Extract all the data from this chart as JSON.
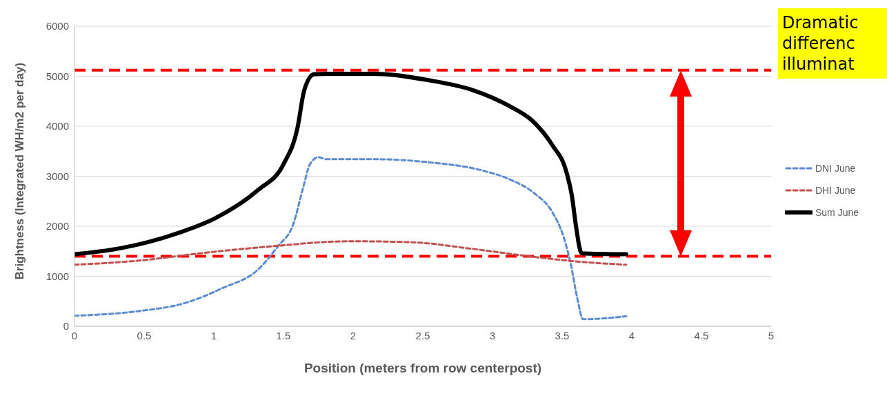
{
  "chart_data": {
    "type": "line",
    "xlabel": "Position (meters from row centerpost)",
    "ylabel": "Brightness (Integrated WH/m2 per day)",
    "xlim": [
      0,
      5
    ],
    "xticks": [
      0,
      0.5,
      1,
      1.5,
      2,
      2.5,
      3,
      3.5,
      4,
      4.5,
      5
    ],
    "ylim": [
      0,
      6000
    ],
    "yticks": [
      0,
      1000,
      2000,
      3000,
      4000,
      5000,
      6000
    ],
    "grid": "y",
    "legend": "right",
    "marker": "none",
    "series": [
      {
        "name": "DNI June",
        "color": "#5b8bd0",
        "line_style": "dashed",
        "x": [
          0,
          0.45,
          0.8,
          1.06,
          1.32,
          1.46,
          1.57,
          1.64,
          1.69,
          1.75,
          1.81,
          2.16,
          2.54,
          2.92,
          3.13,
          3.3,
          3.43,
          3.51,
          3.56,
          3.61,
          3.65,
          3.96
        ],
        "values": [
          210,
          300,
          470,
          760,
          1140,
          1600,
          2040,
          2760,
          3240,
          3380,
          3340,
          3340,
          3280,
          3120,
          2930,
          2660,
          2280,
          1790,
          1270,
          540,
          140,
          200
        ]
      },
      {
        "name": "DHI June",
        "color": "#c0504d",
        "line_style": "dashed",
        "x": [
          0,
          0.45,
          0.97,
          1.46,
          1.84,
          1.98,
          2.42,
          2.85,
          3.29,
          3.63,
          3.96
        ],
        "values": [
          1230,
          1310,
          1480,
          1610,
          1690,
          1700,
          1680,
          1550,
          1390,
          1290,
          1230
        ]
      },
      {
        "name": "Sum June",
        "color": "#000000",
        "line_style": "solid",
        "x": [
          0,
          0.33,
          0.75,
          1.01,
          1.32,
          1.5,
          1.6,
          1.65,
          1.72,
          1.81,
          2.16,
          2.54,
          2.85,
          3.13,
          3.29,
          3.43,
          3.53,
          3.57,
          3.6,
          3.64,
          3.96
        ],
        "values": [
          1440,
          1560,
          1870,
          2160,
          2730,
          3240,
          3960,
          4730,
          5040,
          5050,
          5050,
          4920,
          4730,
          4390,
          4100,
          3620,
          3090,
          2610,
          1990,
          1460,
          1440
        ]
      }
    ],
    "ref_lines": [
      {
        "axis": "y",
        "value": 5120,
        "color": "#ff0000",
        "line_style": "dashed"
      },
      {
        "axis": "y",
        "value": 1400,
        "color": "#ff0000",
        "line_style": "dashed"
      }
    ],
    "annotations": [
      "Dramatic differenc illuminat"
    ]
  }
}
